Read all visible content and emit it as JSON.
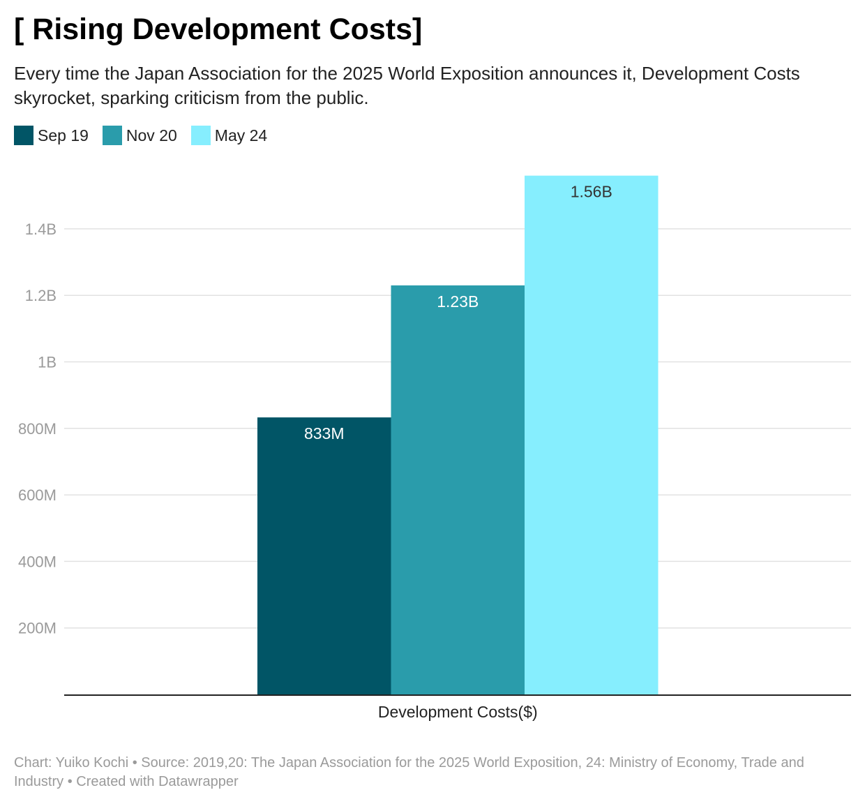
{
  "title": "[ Rising Development Costs]",
  "subtitle": "Every time the Japan Association for the 2025 World Exposition announces it, Development Costs skyrocket, sparking criticism from the public.",
  "footer": {
    "chart_credit": "Chart: Yuiko Kochi",
    "separator": " • ",
    "source": "Source: 2019,20: The Japan Association for the 2025 World Exposition, 24: Ministry of Economy, Trade and Industry",
    "created_with": "Created with Datawrapper"
  },
  "chart_data": {
    "type": "bar",
    "categories": [
      "Development Costs($)"
    ],
    "series": [
      {
        "name": "Sep 19",
        "values": [
          833000000
        ],
        "value_label": "833M",
        "color": "#015566",
        "label_color": "#ffffff"
      },
      {
        "name": "Nov 20",
        "values": [
          1230000000
        ],
        "value_label": "1.23B",
        "color": "#2a9cab",
        "label_color": "#ffffff"
      },
      {
        "name": "May 24",
        "values": [
          1560000000
        ],
        "value_label": "1.56B",
        "color": "#86eefe",
        "label_color": "#333333"
      }
    ],
    "ylim": [
      0,
      1560000000
    ],
    "yticks": [
      {
        "value": 200000000,
        "label": "200M"
      },
      {
        "value": 400000000,
        "label": "400M"
      },
      {
        "value": 600000000,
        "label": "600M"
      },
      {
        "value": 800000000,
        "label": "800M"
      },
      {
        "value": 1000000000,
        "label": "1B"
      },
      {
        "value": 1200000000,
        "label": "1.2B"
      },
      {
        "value": 1400000000,
        "label": "1.4B"
      }
    ],
    "grid": true,
    "legend_position": "top-left",
    "xlabel": "",
    "ylabel": ""
  }
}
